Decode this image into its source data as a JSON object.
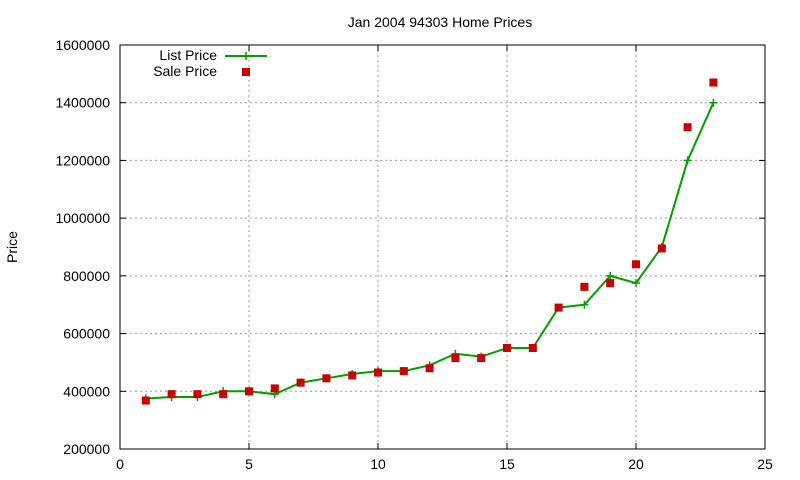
{
  "chart_data": {
    "type": "line",
    "title": "Jan 2004 94303 Home Prices",
    "xlabel": "",
    "ylabel": "Price",
    "xlim": [
      0,
      25
    ],
    "ylim": [
      200000,
      1600000
    ],
    "xticks": [
      0,
      5,
      10,
      15,
      20,
      25
    ],
    "yticks": [
      200000,
      400000,
      600000,
      800000,
      1000000,
      1200000,
      1400000,
      1600000
    ],
    "grid": true,
    "legend_position": "top-left",
    "series": [
      {
        "name": "List Price",
        "style": "line-plus",
        "color": "#00a000",
        "x": [
          1,
          2,
          3,
          4,
          5,
          6,
          7,
          8,
          9,
          10,
          11,
          12,
          13,
          14,
          15,
          16,
          17,
          18,
          19,
          20,
          21,
          22,
          23
        ],
        "y": [
          375000,
          380000,
          380000,
          400000,
          400000,
          390000,
          430000,
          445000,
          460000,
          470000,
          470000,
          490000,
          530000,
          520000,
          550000,
          550000,
          690000,
          700000,
          800000,
          775000,
          900000,
          1200000,
          1400000
        ]
      },
      {
        "name": "Sale Price",
        "style": "square-markers",
        "color": "#cc0000",
        "x": [
          1,
          2,
          3,
          4,
          5,
          6,
          7,
          8,
          9,
          10,
          11,
          12,
          13,
          14,
          15,
          16,
          17,
          18,
          19,
          20,
          21,
          22,
          23
        ],
        "y": [
          368000,
          390000,
          390000,
          390000,
          400000,
          410000,
          430000,
          445000,
          455000,
          465000,
          470000,
          480000,
          515000,
          515000,
          550000,
          550000,
          690000,
          762000,
          775000,
          840000,
          895000,
          1315000,
          1470000
        ]
      }
    ]
  }
}
